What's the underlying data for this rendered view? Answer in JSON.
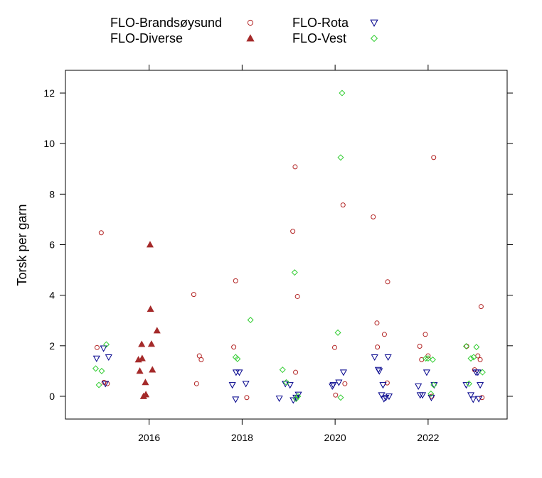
{
  "chart_data": {
    "type": "scatter",
    "ylabel": "Torsk per garn",
    "xlabel": "",
    "xlim": [
      2014.2,
      2023.7
    ],
    "ylim": [
      -0.9,
      12.9
    ],
    "x_ticks": [
      2016,
      2018,
      2020,
      2022
    ],
    "x_tick_labels": [
      "2016",
      "2018",
      "2020",
      "2022"
    ],
    "y_ticks": [
      0,
      2,
      4,
      6,
      8,
      10,
      12
    ],
    "y_tick_labels": [
      "0",
      "2",
      "4",
      "6",
      "8",
      "10",
      "12"
    ],
    "legend_position": "top",
    "series": [
      {
        "name": "FLO-Brandsøysund",
        "marker": "circle",
        "color": "#b22222",
        "points": [
          [
            2014.88,
            1.93
          ],
          [
            2014.97,
            6.47
          ],
          [
            2015.03,
            0.55
          ],
          [
            2015.1,
            0.5
          ],
          [
            2016.96,
            4.03
          ],
          [
            2017.02,
            0.5
          ],
          [
            2017.08,
            1.6
          ],
          [
            2017.12,
            1.45
          ],
          [
            2017.82,
            1.95
          ],
          [
            2017.86,
            4.57
          ],
          [
            2018.1,
            -0.05
          ],
          [
            2019.14,
            9.08
          ],
          [
            2019.09,
            6.53
          ],
          [
            2019.19,
            3.95
          ],
          [
            2019.15,
            0.95
          ],
          [
            2019.99,
            1.93
          ],
          [
            2020.01,
            0.05
          ],
          [
            2020.17,
            7.57
          ],
          [
            2020.21,
            0.5
          ],
          [
            2020.82,
            7.1
          ],
          [
            2020.9,
            2.9
          ],
          [
            2020.91,
            1.95
          ],
          [
            2021.06,
            2.45
          ],
          [
            2021.13,
            4.53
          ],
          [
            2021.12,
            0.53
          ],
          [
            2021.82,
            1.98
          ],
          [
            2021.86,
            1.45
          ],
          [
            2021.94,
            2.45
          ],
          [
            2022.0,
            1.6
          ],
          [
            2022.12,
            9.45
          ],
          [
            2022.08,
            0.0
          ],
          [
            2022.83,
            1.98
          ],
          [
            2023.0,
            1.05
          ],
          [
            2023.07,
            1.6
          ],
          [
            2023.12,
            1.45
          ],
          [
            2023.14,
            3.55
          ],
          [
            2023.16,
            -0.05
          ]
        ]
      },
      {
        "name": "FLO-Diverse",
        "marker": "triangle",
        "color": "#a52a2a",
        "points": [
          [
            2015.77,
            1.45
          ],
          [
            2015.8,
            1.0
          ],
          [
            2015.84,
            2.06
          ],
          [
            2015.85,
            1.5
          ],
          [
            2015.88,
            0.0
          ],
          [
            2015.92,
            0.55
          ],
          [
            2015.93,
            0.07
          ],
          [
            2016.02,
            6.0
          ],
          [
            2016.03,
            3.45
          ],
          [
            2016.05,
            2.07
          ],
          [
            2016.07,
            1.05
          ],
          [
            2016.17,
            2.6
          ]
        ]
      },
      {
        "name": "FLO-Rota",
        "marker": "triangle-down",
        "color": "#00008b",
        "points": [
          [
            2014.87,
            1.5
          ],
          [
            2015.02,
            1.9
          ],
          [
            2015.06,
            0.5
          ],
          [
            2015.13,
            1.55
          ],
          [
            2017.79,
            0.45
          ],
          [
            2017.86,
            -0.12
          ],
          [
            2017.87,
            0.95
          ],
          [
            2017.94,
            0.95
          ],
          [
            2018.08,
            0.5
          ],
          [
            2018.8,
            -0.08
          ],
          [
            2018.93,
            0.5
          ],
          [
            2019.03,
            0.45
          ],
          [
            2019.1,
            -0.15
          ],
          [
            2019.16,
            -0.05
          ],
          [
            2019.21,
            0.07
          ],
          [
            2019.94,
            0.4
          ],
          [
            2019.96,
            0.45
          ],
          [
            2020.08,
            0.55
          ],
          [
            2020.18,
            0.95
          ],
          [
            2020.85,
            1.55
          ],
          [
            2020.93,
            1.05
          ],
          [
            2020.95,
            1.0
          ],
          [
            2021.0,
            0.05
          ],
          [
            2021.03,
            0.45
          ],
          [
            2021.05,
            -0.1
          ],
          [
            2021.09,
            -0.05
          ],
          [
            2021.14,
            1.55
          ],
          [
            2021.16,
            0.0
          ],
          [
            2021.79,
            0.4
          ],
          [
            2021.83,
            0.05
          ],
          [
            2021.88,
            0.05
          ],
          [
            2021.97,
            0.95
          ],
          [
            2022.07,
            -0.05
          ],
          [
            2022.13,
            0.45
          ],
          [
            2022.82,
            0.45
          ],
          [
            2022.92,
            0.05
          ],
          [
            2022.97,
            -0.12
          ],
          [
            2023.03,
            0.95
          ],
          [
            2023.07,
            0.95
          ],
          [
            2023.09,
            -0.1
          ],
          [
            2023.12,
            0.45
          ]
        ]
      },
      {
        "name": "FLO-Vest",
        "marker": "diamond",
        "color": "#32cd32",
        "points": [
          [
            2014.85,
            1.1
          ],
          [
            2014.92,
            0.45
          ],
          [
            2014.98,
            1.0
          ],
          [
            2015.08,
            2.05
          ],
          [
            2017.86,
            1.55
          ],
          [
            2017.9,
            1.48
          ],
          [
            2018.18,
            3.02
          ],
          [
            2018.87,
            1.05
          ],
          [
            2018.95,
            0.55
          ],
          [
            2019.13,
            4.9
          ],
          [
            2019.16,
            -0.1
          ],
          [
            2019.2,
            0.0
          ],
          [
            2020.06,
            2.52
          ],
          [
            2020.12,
            9.45
          ],
          [
            2020.15,
            12.0
          ],
          [
            2020.12,
            -0.05
          ],
          [
            2021.95,
            1.5
          ],
          [
            2022.0,
            1.5
          ],
          [
            2022.1,
            1.45
          ],
          [
            2022.06,
            0.1
          ],
          [
            2022.12,
            0.45
          ],
          [
            2022.82,
            1.98
          ],
          [
            2022.92,
            1.5
          ],
          [
            2022.98,
            1.55
          ],
          [
            2023.04,
            1.95
          ],
          [
            2023.17,
            0.95
          ],
          [
            2022.88,
            0.5
          ]
        ]
      }
    ]
  }
}
